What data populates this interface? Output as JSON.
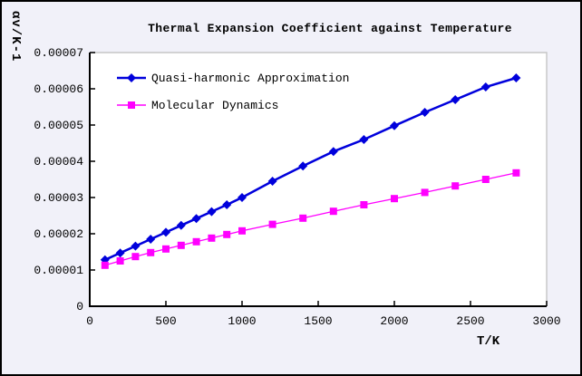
{
  "window": {
    "background": "#F1F1F9",
    "border_color": "#000000"
  },
  "chart_data": {
    "type": "line",
    "title": "Thermal Expansion Coefficient against Temperature",
    "xlabel": "T/K",
    "ylabel": "αv/K-1",
    "grid": false,
    "legend_position": "top-left-inside",
    "plot_bg": "#FFFFFF",
    "frame_color": "#C6C6C6",
    "axis_color": "#000000",
    "xlim": [
      0,
      3000
    ],
    "ylim": [
      0,
      7e-05
    ],
    "x_tick_values": [
      0,
      500,
      1000,
      1500,
      2000,
      2500,
      3000
    ],
    "x_tick_labels": [
      "0",
      "500",
      "1000",
      "1500",
      "2000",
      "2500",
      "3000"
    ],
    "y_tick_values": [
      0,
      1e-05,
      2e-05,
      3e-05,
      4e-05,
      5e-05,
      6e-05,
      7e-05
    ],
    "y_tick_labels": [
      "0",
      "0.00001",
      "0.00002",
      "0.00003",
      "0.00004",
      "0.00005",
      "0.00006",
      "0.00007"
    ],
    "x": [
      100,
      200,
      300,
      400,
      500,
      600,
      700,
      800,
      900,
      1000,
      1200,
      1400,
      1600,
      1800,
      2000,
      2200,
      2400,
      2600,
      2800
    ],
    "series": [
      {
        "name": "Quasi-harmonic Approximation",
        "color": "#0000DC",
        "marker": "diamond",
        "line_width": 2.5,
        "values": [
          1.28e-05,
          1.47e-05,
          1.66e-05,
          1.85e-05,
          2.04e-05,
          2.23e-05,
          2.42e-05,
          2.61e-05,
          2.8e-05,
          3e-05,
          3.45e-05,
          3.87e-05,
          4.27e-05,
          4.6e-05,
          4.98e-05,
          5.35e-05,
          5.7e-05,
          6.05e-05,
          6.3e-05
        ]
      },
      {
        "name": "Molecular Dynamics",
        "color": "#FF00FF",
        "marker": "square",
        "line_width": 1.3,
        "values": [
          1.13e-05,
          1.25e-05,
          1.37e-05,
          1.48e-05,
          1.58e-05,
          1.68e-05,
          1.78e-05,
          1.88e-05,
          1.98e-05,
          2.08e-05,
          2.26e-05,
          2.43e-05,
          2.62e-05,
          2.8e-05,
          2.97e-05,
          3.14e-05,
          3.32e-05,
          3.5e-05,
          3.68e-05
        ]
      }
    ]
  }
}
